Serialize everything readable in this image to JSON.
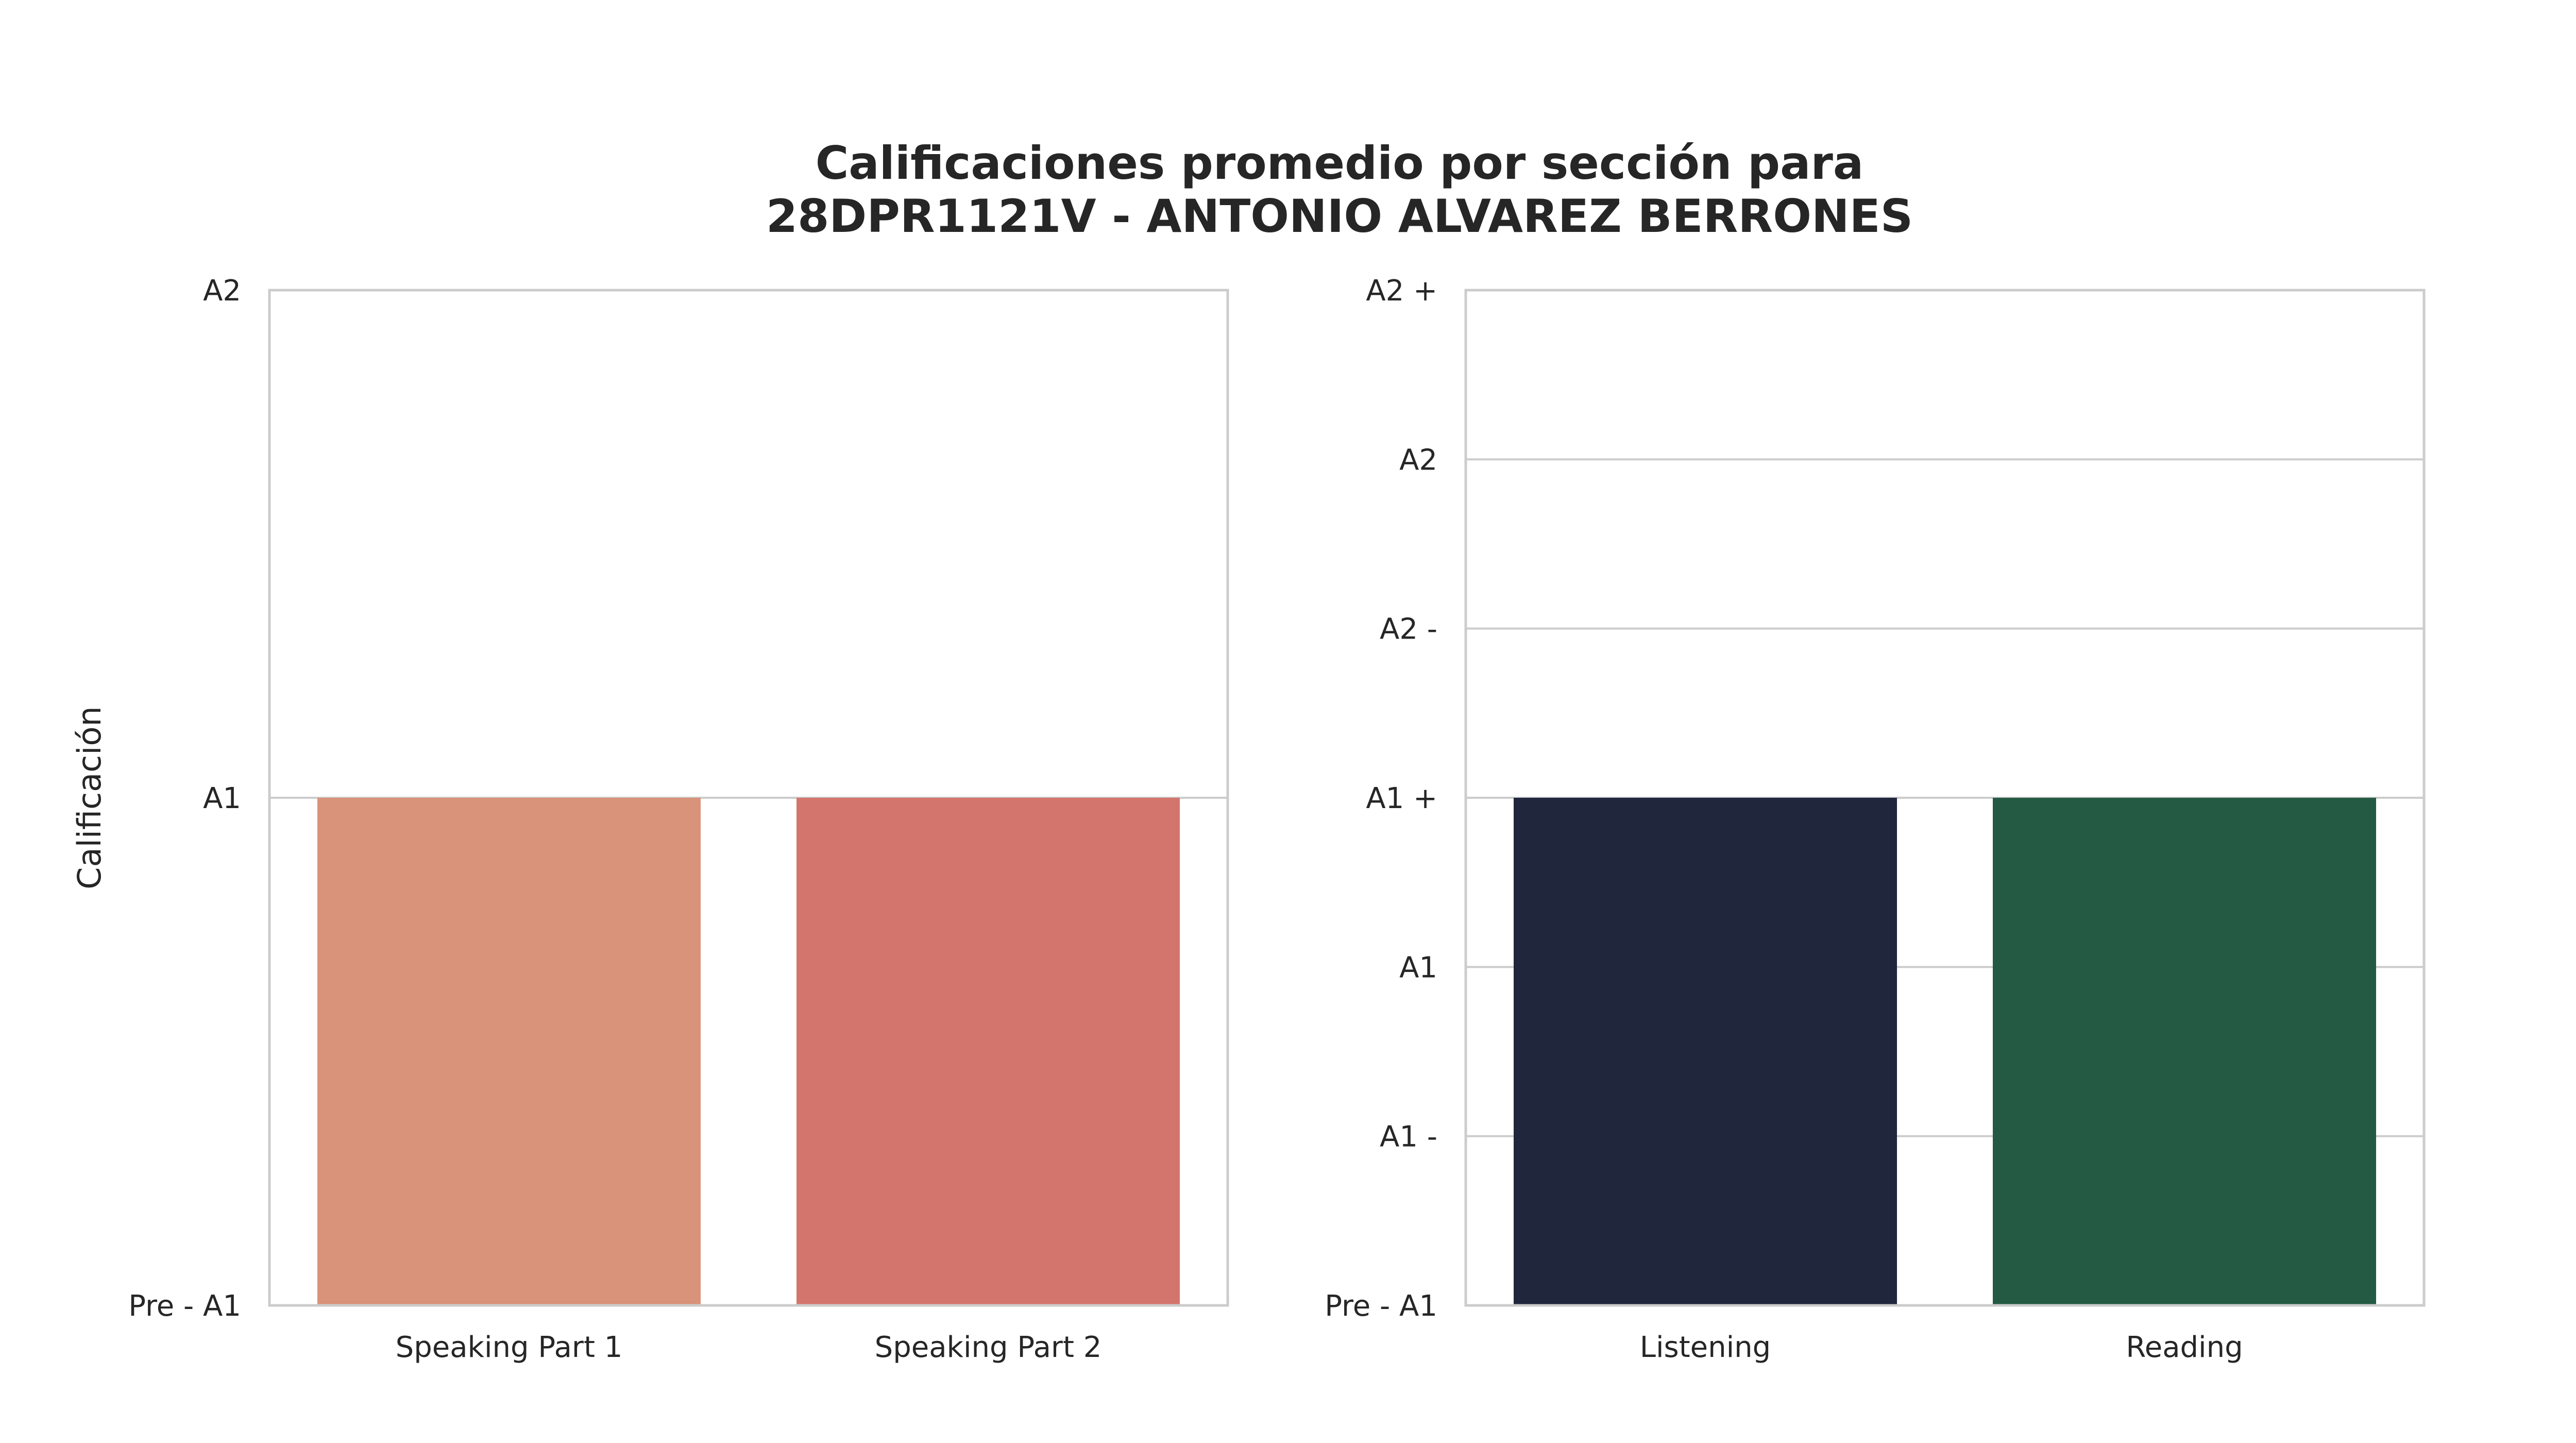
{
  "figure": {
    "title_line1": "Calificaciones promedio por sección para",
    "title_line2": "28DPR1121V - ANTONIO ALVAREZ BERRONES"
  },
  "chart_data": [
    {
      "type": "bar",
      "ylabel": "Calificación",
      "xlabel": "",
      "categories": [
        "Speaking Part 1",
        "Speaking Part 2"
      ],
      "values": [
        1,
        1
      ],
      "value_labels": [
        "A1",
        "A1"
      ],
      "colors": [
        "#d9937a",
        "#d4756d"
      ],
      "y_ticks": [
        {
          "value": 0,
          "label": "Pre - A1"
        },
        {
          "value": 1,
          "label": "A1"
        },
        {
          "value": 2,
          "label": "A2"
        }
      ],
      "ylim": [
        0,
        2
      ],
      "grid": true
    },
    {
      "type": "bar",
      "ylabel": "",
      "xlabel": "",
      "categories": [
        "Listening",
        "Reading"
      ],
      "values": [
        3,
        3
      ],
      "value_labels": [
        "A1 +",
        "A1 +"
      ],
      "colors": [
        "#20263c",
        "#245a43"
      ],
      "y_ticks": [
        {
          "value": 0,
          "label": "Pre - A1"
        },
        {
          "value": 1,
          "label": "A1 -"
        },
        {
          "value": 2,
          "label": "A1"
        },
        {
          "value": 3,
          "label": "A1 +"
        },
        {
          "value": 4,
          "label": "A2 -"
        },
        {
          "value": 5,
          "label": "A2"
        },
        {
          "value": 6,
          "label": "A2 +"
        }
      ],
      "ylim": [
        0,
        6
      ],
      "grid": true
    }
  ]
}
